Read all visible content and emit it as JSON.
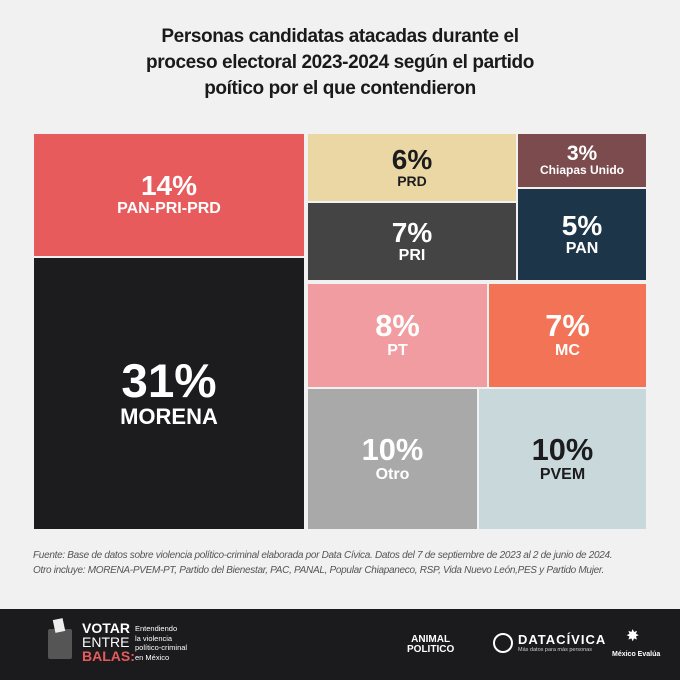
{
  "title": [
    "Personas candidatas atacadas durante el",
    "proceso electoral 2023-2024 según el partido",
    "poítico por el que contendieron"
  ],
  "chart_data": {
    "type": "treemap",
    "title": "Personas candidatas atacadas durante el proceso electoral 2023-2024 según el partido poítico por el que contendieron",
    "items": [
      {
        "label": "PAN-PRI-PRD",
        "value": 14,
        "pct_label": "14%",
        "color": "#e85b5d",
        "text": "#ffffff"
      },
      {
        "label": "MORENA",
        "value": 31,
        "pct_label": "31%",
        "color": "#1c1c1e",
        "text": "#ffffff"
      },
      {
        "label": "PRD",
        "value": 6,
        "pct_label": "6%",
        "color": "#ead7a3",
        "text": "#1c1c1e"
      },
      {
        "label": "PRI",
        "value": 7,
        "pct_label": "7%",
        "color": "#444444",
        "text": "#ffffff"
      },
      {
        "label": "Chiapas Unido",
        "value": 3,
        "pct_label": "3%",
        "color": "#7c4b4d",
        "text": "#ffffff"
      },
      {
        "label": "PAN",
        "value": 5,
        "pct_label": "5%",
        "color": "#1d3549",
        "text": "#ffffff"
      },
      {
        "label": "PT",
        "value": 8,
        "pct_label": "8%",
        "color": "#f09ca1",
        "text": "#ffffff"
      },
      {
        "label": "MC",
        "value": 7,
        "pct_label": "7%",
        "color": "#f27356",
        "text": "#ffffff"
      },
      {
        "label": "Otro",
        "value": 10,
        "pct_label": "10%",
        "color": "#a9a9a9",
        "text": "#ffffff"
      },
      {
        "label": "PVEM",
        "value": 10,
        "pct_label": "10%",
        "color": "#c9d8db",
        "text": "#1c1c1e"
      }
    ]
  },
  "notes": [
    "Fuente: Base de datos sobre violencia político-criminal elaborada por Data Cívica. Datos del 7 de septiembre de 2023 al 2 de junio de 2024.",
    "Otro incluye: MORENA-PVEM-PT, Partido del Bienestar, PAC, PANAL, Popular Chiapaneco, RSP, Vida Nuevo León,PES y Partido Mujer."
  ],
  "footer": {
    "logo_lines": [
      "VOTAR",
      "ENTRE",
      "BALAS:"
    ],
    "tagline": [
      "Entendiendo",
      "la violencia",
      "político-criminal",
      "en México"
    ],
    "animal": [
      "ANIMAL",
      "POLITICO"
    ],
    "datacivica": "DATACÍVICA",
    "datacivica_sub": "Más datos para más personas",
    "mexico_evalua": "México Evalúa"
  }
}
